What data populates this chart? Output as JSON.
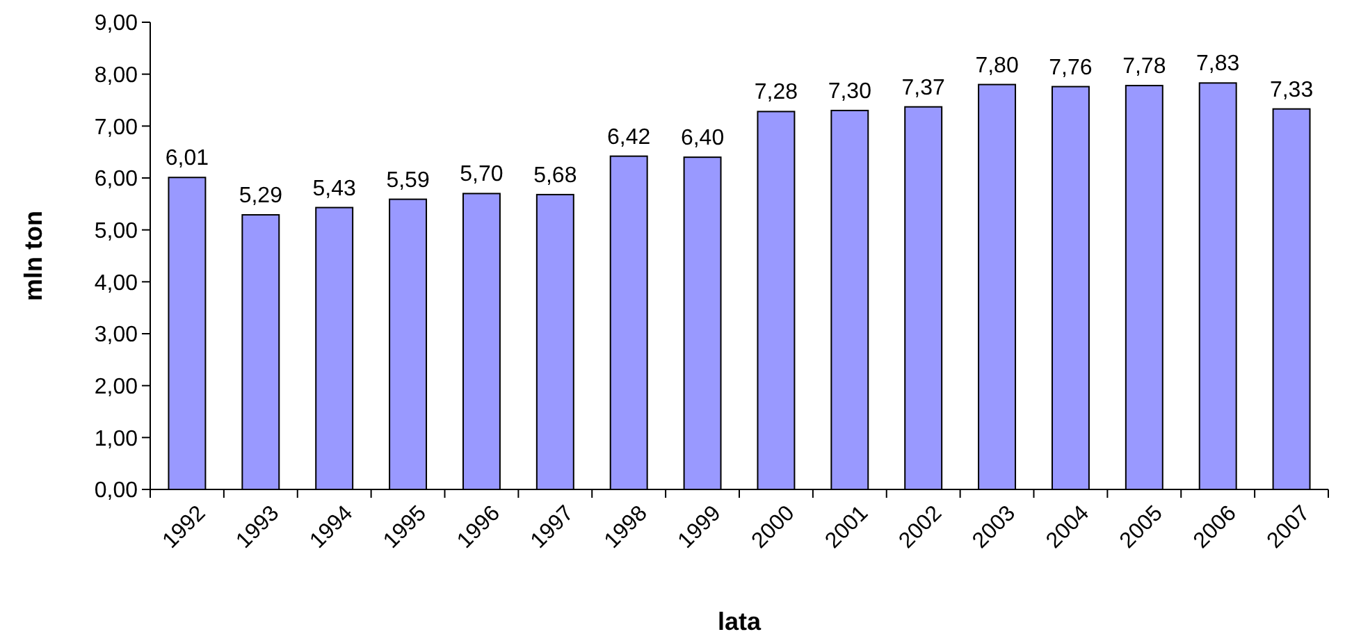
{
  "chart_data": {
    "type": "bar",
    "xlabel": "lata",
    "ylabel": "mln ton",
    "categories": [
      "1992",
      "1993",
      "1994",
      "1995",
      "1996",
      "1997",
      "1998",
      "1999",
      "2000",
      "2001",
      "2002",
      "2003",
      "2004",
      "2005",
      "2006",
      "2007"
    ],
    "values": [
      6.01,
      5.29,
      5.43,
      5.59,
      5.7,
      5.68,
      6.42,
      6.4,
      7.28,
      7.3,
      7.37,
      7.8,
      7.76,
      7.78,
      7.83,
      7.33
    ],
    "value_labels": [
      "6,01",
      "5,29",
      "5,43",
      "5,59",
      "5,70",
      "5,68",
      "6,42",
      "6,40",
      "7,28",
      "7,30",
      "7,37",
      "7,80",
      "7,76",
      "7,78",
      "7,83",
      "7,33"
    ],
    "color": "#9999ff",
    "ylim": [
      0,
      9
    ],
    "yticks": [
      {
        "value": 0,
        "label": "0,00"
      },
      {
        "value": 1,
        "label": "1,00"
      },
      {
        "value": 2,
        "label": "2,00"
      },
      {
        "value": 3,
        "label": "3,00"
      },
      {
        "value": 4,
        "label": "4,00"
      },
      {
        "value": 5,
        "label": "5,00"
      },
      {
        "value": 6,
        "label": "6,00"
      },
      {
        "value": 7,
        "label": "7,00"
      },
      {
        "value": 8,
        "label": "8,00"
      },
      {
        "value": 9,
        "label": "9,00"
      }
    ],
    "grid": false
  }
}
